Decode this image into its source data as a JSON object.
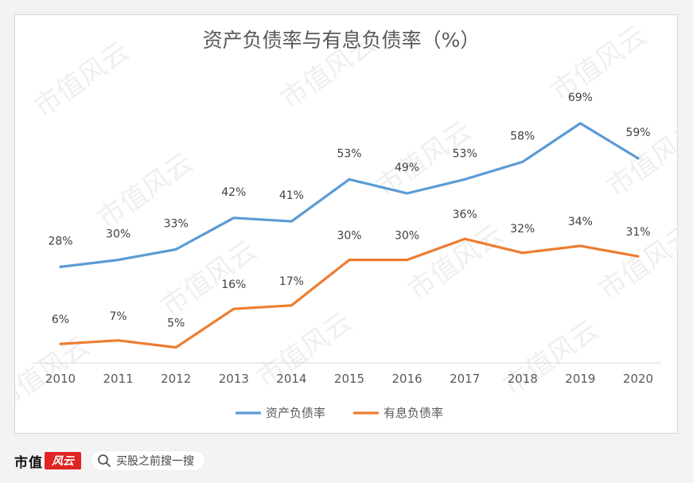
{
  "chart_data": {
    "type": "line",
    "title": "资产负债率与有息负债率（%）",
    "categories": [
      "2010",
      "2011",
      "2012",
      "2013",
      "2014",
      "2015",
      "2016",
      "2017",
      "2018",
      "2019",
      "2020"
    ],
    "series": [
      {
        "name": "资产负债率",
        "color": "#5b9bd5",
        "values": [
          28,
          30,
          33,
          42,
          41,
          53,
          49,
          53,
          58,
          69,
          59
        ],
        "labels": [
          "28%",
          "30%",
          "33%",
          "42%",
          "41%",
          "53%",
          "49%",
          "53%",
          "58%",
          "69%",
          "59%"
        ]
      },
      {
        "name": "有息负债率",
        "color": "#ed7d31",
        "values": [
          6,
          7,
          5,
          16,
          17,
          30,
          30,
          36,
          32,
          34,
          31
        ],
        "labels": [
          "6%",
          "7%",
          "5%",
          "16%",
          "17%",
          "30%",
          "30%",
          "36%",
          "32%",
          "34%",
          "31%"
        ]
      }
    ],
    "legend_position": "bottom",
    "grid": false,
    "watermark": "市值风云"
  },
  "footer": {
    "brand": "市值",
    "brand_logo": "风云",
    "search_placeholder": "买股之前搜一搜",
    "search_icon": "search-icon"
  }
}
